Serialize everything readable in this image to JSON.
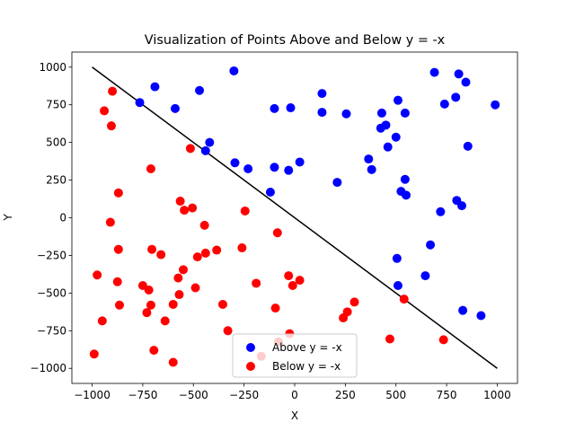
{
  "chart_data": {
    "type": "scatter",
    "title": "Visualization of Points Above and Below y = -x",
    "xlabel": "X",
    "ylabel": "Y",
    "xlim": [
      -1100,
      1100
    ],
    "ylim": [
      -1100,
      1100
    ],
    "xticks": [
      -1000,
      -750,
      -500,
      -250,
      0,
      250,
      500,
      750,
      1000
    ],
    "yticks": [
      -1000,
      -750,
      -500,
      -250,
      0,
      250,
      500,
      750,
      1000
    ],
    "grid": false,
    "legend_position": "bottom-center",
    "line": {
      "label": "y = -x",
      "points": [
        [
          -1000,
          1000
        ],
        [
          1000,
          -1000
        ]
      ],
      "color": "#000000"
    },
    "series": [
      {
        "name": "Above y = -x",
        "color": "#0000ff",
        "points": [
          [
            -300,
            975
          ],
          [
            -690,
            870
          ],
          [
            -470,
            845
          ],
          [
            -765,
            765
          ],
          [
            -590,
            725
          ],
          [
            -420,
            500
          ],
          [
            -440,
            445
          ],
          [
            -295,
            365
          ],
          [
            -230,
            325
          ],
          [
            -100,
            335
          ],
          [
            -120,
            170
          ],
          [
            -30,
            315
          ],
          [
            25,
            370
          ],
          [
            -100,
            725
          ],
          [
            -20,
            730
          ],
          [
            135,
            825
          ],
          [
            135,
            700
          ],
          [
            255,
            690
          ],
          [
            210,
            235
          ],
          [
            365,
            390
          ],
          [
            380,
            320
          ],
          [
            430,
            695
          ],
          [
            425,
            595
          ],
          [
            450,
            615
          ],
          [
            460,
            470
          ],
          [
            500,
            535
          ],
          [
            510,
            780
          ],
          [
            545,
            695
          ],
          [
            525,
            175
          ],
          [
            545,
            255
          ],
          [
            550,
            150
          ],
          [
            505,
            -270
          ],
          [
            510,
            -450
          ],
          [
            645,
            -385
          ],
          [
            670,
            -180
          ],
          [
            690,
            965
          ],
          [
            720,
            40
          ],
          [
            740,
            755
          ],
          [
            795,
            800
          ],
          [
            810,
            955
          ],
          [
            845,
            900
          ],
          [
            800,
            115
          ],
          [
            825,
            80
          ],
          [
            855,
            475
          ],
          [
            830,
            -615
          ],
          [
            920,
            -650
          ],
          [
            990,
            750
          ]
        ]
      },
      {
        "name": "Below y = -x",
        "color": "#ff0000",
        "points": [
          [
            -990,
            -905
          ],
          [
            -975,
            -380
          ],
          [
            -950,
            -685
          ],
          [
            -940,
            710
          ],
          [
            -905,
            610
          ],
          [
            -900,
            840
          ],
          [
            -910,
            -30
          ],
          [
            -870,
            165
          ],
          [
            -870,
            -210
          ],
          [
            -875,
            -425
          ],
          [
            -865,
            -580
          ],
          [
            -750,
            -450
          ],
          [
            -730,
            -630
          ],
          [
            -720,
            -480
          ],
          [
            -710,
            -580
          ],
          [
            -710,
            325
          ],
          [
            -705,
            -210
          ],
          [
            -695,
            -880
          ],
          [
            -660,
            -245
          ],
          [
            -640,
            -685
          ],
          [
            -600,
            -960
          ],
          [
            -600,
            -575
          ],
          [
            -575,
            -400
          ],
          [
            -570,
            -510
          ],
          [
            -565,
            110
          ],
          [
            -545,
            50
          ],
          [
            -550,
            -345
          ],
          [
            -515,
            460
          ],
          [
            -505,
            65
          ],
          [
            -490,
            -465
          ],
          [
            -480,
            -260
          ],
          [
            -445,
            -50
          ],
          [
            -440,
            -235
          ],
          [
            -385,
            -215
          ],
          [
            -355,
            -575
          ],
          [
            -330,
            -750
          ],
          [
            -260,
            -200
          ],
          [
            -245,
            45
          ],
          [
            -190,
            -435
          ],
          [
            -165,
            -920
          ],
          [
            -95,
            -600
          ],
          [
            -85,
            -100
          ],
          [
            -80,
            -825
          ],
          [
            -30,
            -385
          ],
          [
            -25,
            -770
          ],
          [
            -10,
            -450
          ],
          [
            25,
            -415
          ],
          [
            240,
            -665
          ],
          [
            260,
            -625
          ],
          [
            295,
            -560
          ],
          [
            470,
            -805
          ],
          [
            540,
            -540
          ],
          [
            735,
            -810
          ]
        ]
      }
    ]
  }
}
